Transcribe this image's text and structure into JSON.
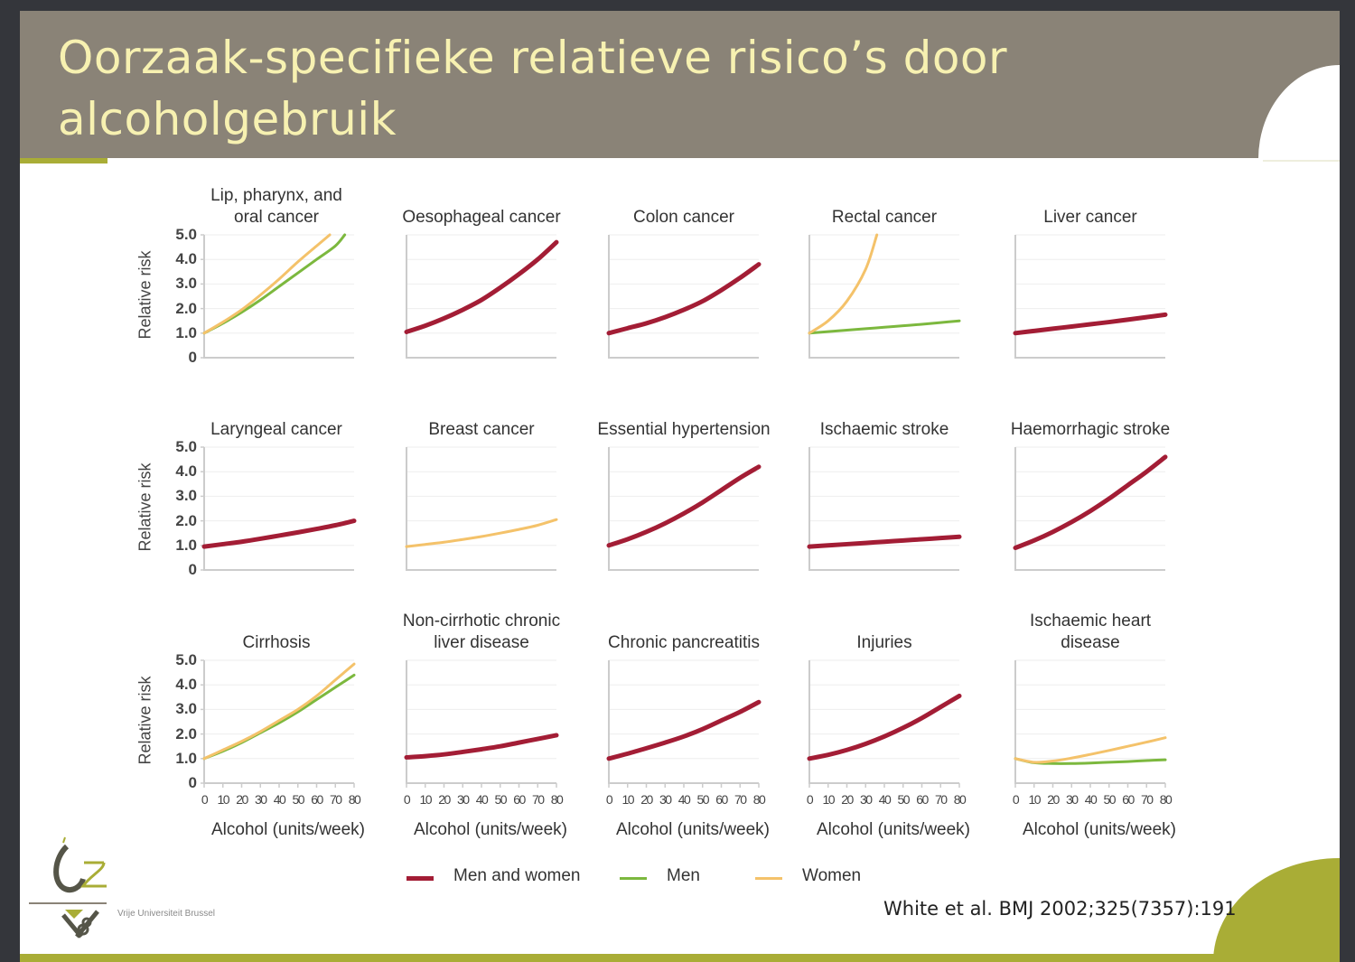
{
  "slide": {
    "title_line1": "Oorzaak-specifieke relatieve risico’s door",
    "title_line2": "alcoholgebruik",
    "citation": "White et al. BMJ 2002;325(7357):191",
    "logo_text": "Vrije Universiteit Brussel",
    "colors": {
      "header_bg": "#8a8377",
      "title_text": "#f7f1b1",
      "accent": "#a9ad36",
      "men_and_women": "#a31d35",
      "men": "#7cb83e",
      "women": "#f4c26a"
    }
  },
  "legend": [
    {
      "label": "Men and women",
      "series": "men_and_women"
    },
    {
      "label": "Men",
      "series": "men"
    },
    {
      "label": "Women",
      "series": "women"
    }
  ],
  "axes": {
    "ylabel": "Relative risk",
    "xlabel": "Alcohol (units/week)",
    "yticks": [
      "5.0",
      "4.0",
      "3.0",
      "2.0",
      "1.0",
      "0"
    ],
    "xticks": [
      "0",
      "10",
      "20",
      "30",
      "40",
      "50",
      "60",
      "70",
      "80"
    ],
    "ylim": [
      0,
      5
    ],
    "xlim": [
      0,
      80
    ]
  },
  "chart_data": {
    "type": "line",
    "title": "Oorzaak-specifieke relatieve risico’s door alcoholgebruik",
    "xlabel": "Alcohol (units/week)",
    "ylabel": "Relative risk",
    "x": [
      0,
      10,
      20,
      30,
      40,
      50,
      60,
      70,
      80
    ],
    "xlim": [
      0,
      80
    ],
    "ylim": [
      0,
      5
    ],
    "grid": true,
    "legend_position": "bottom",
    "panels": [
      {
        "title": "Lip, pharynx, and oral cancer",
        "series": [
          {
            "name": "Men",
            "values": [
              1.0,
              1.4,
              1.85,
              2.35,
              2.9,
              3.45,
              4.0,
              4.55,
              5.0
            ],
            "x": [
              0,
              10,
              20,
              30,
              40,
              50,
              60,
              70,
              75
            ]
          },
          {
            "name": "Women",
            "values": [
              1.0,
              1.45,
              1.95,
              2.55,
              3.2,
              3.9,
              4.55,
              5.0
            ],
            "x": [
              0,
              10,
              20,
              30,
              40,
              50,
              60,
              67
            ]
          }
        ]
      },
      {
        "title": "Oesophageal cancer",
        "series": [
          {
            "name": "Men and women",
            "values": [
              1.05,
              1.3,
              1.6,
              1.95,
              2.35,
              2.85,
              3.4,
              4.0,
              4.7
            ]
          }
        ]
      },
      {
        "title": "Colon cancer",
        "series": [
          {
            "name": "Men and women",
            "values": [
              1.0,
              1.2,
              1.4,
              1.65,
              1.95,
              2.3,
              2.75,
              3.25,
              3.8
            ]
          }
        ]
      },
      {
        "title": "Rectal cancer",
        "series": [
          {
            "name": "Men",
            "values": [
              1.0,
              1.06,
              1.12,
              1.18,
              1.24,
              1.3,
              1.36,
              1.43,
              1.5
            ]
          },
          {
            "name": "Women",
            "values": [
              1.0,
              1.5,
              2.3,
              3.6,
              5.0
            ],
            "x": [
              0,
              10,
              20,
              30,
              36
            ]
          }
        ]
      },
      {
        "title": "Liver cancer",
        "series": [
          {
            "name": "Men and women",
            "values": [
              1.0,
              1.09,
              1.18,
              1.27,
              1.36,
              1.45,
              1.55,
              1.65,
              1.75
            ]
          }
        ]
      },
      {
        "title": "Laryngeal cancer",
        "series": [
          {
            "name": "Men and women",
            "values": [
              0.95,
              1.05,
              1.15,
              1.27,
              1.4,
              1.53,
              1.67,
              1.82,
              2.0
            ]
          }
        ]
      },
      {
        "title": "Breast cancer",
        "series": [
          {
            "name": "Women",
            "values": [
              0.95,
              1.04,
              1.13,
              1.24,
              1.36,
              1.5,
              1.65,
              1.82,
              2.05
            ]
          }
        ]
      },
      {
        "title": "Essential hypertension",
        "series": [
          {
            "name": "Men and women",
            "values": [
              1.0,
              1.25,
              1.55,
              1.9,
              2.3,
              2.75,
              3.25,
              3.75,
              4.2
            ]
          }
        ]
      },
      {
        "title": "Ischaemic stroke",
        "series": [
          {
            "name": "Men and women",
            "values": [
              0.95,
              1.0,
              1.05,
              1.1,
              1.15,
              1.2,
              1.25,
              1.3,
              1.35
            ]
          }
        ]
      },
      {
        "title": "Haemorrhagic stroke",
        "series": [
          {
            "name": "Men and women",
            "values": [
              0.9,
              1.2,
              1.55,
              1.95,
              2.4,
              2.9,
              3.45,
              4.0,
              4.6
            ]
          }
        ]
      },
      {
        "title": "Cirrhosis",
        "series": [
          {
            "name": "Men",
            "values": [
              1.0,
              1.3,
              1.65,
              2.05,
              2.45,
              2.9,
              3.4,
              3.9,
              4.4
            ]
          },
          {
            "name": "Women",
            "values": [
              1.0,
              1.35,
              1.7,
              2.1,
              2.55,
              3.0,
              3.55,
              4.2,
              4.85
            ]
          }
        ]
      },
      {
        "title": "Non-cirrhotic chronic liver disease",
        "series": [
          {
            "name": "Men and women",
            "values": [
              1.05,
              1.1,
              1.17,
              1.27,
              1.38,
              1.5,
              1.65,
              1.8,
              1.95
            ]
          }
        ]
      },
      {
        "title": "Chronic pancreatitis",
        "series": [
          {
            "name": "Men and women",
            "values": [
              1.0,
              1.2,
              1.42,
              1.65,
              1.9,
              2.2,
              2.55,
              2.9,
              3.3
            ]
          }
        ]
      },
      {
        "title": "Injuries",
        "series": [
          {
            "name": "Men and women",
            "values": [
              1.0,
              1.15,
              1.35,
              1.6,
              1.9,
              2.25,
              2.65,
              3.1,
              3.55
            ]
          }
        ]
      },
      {
        "title": "Ischaemic heart disease",
        "series": [
          {
            "name": "Men",
            "values": [
              1.0,
              0.83,
              0.8,
              0.8,
              0.82,
              0.85,
              0.88,
              0.92,
              0.95
            ]
          },
          {
            "name": "Women",
            "values": [
              1.0,
              0.85,
              0.9,
              1.02,
              1.17,
              1.33,
              1.5,
              1.67,
              1.85
            ]
          }
        ]
      }
    ]
  },
  "panels": [
    {
      "title_l1": "Lip, pharynx, and",
      "title_l2": "oral cancer"
    },
    {
      "title_l1": "",
      "title_l2": "Oesophageal cancer"
    },
    {
      "title_l1": "",
      "title_l2": "Colon cancer"
    },
    {
      "title_l1": "",
      "title_l2": "Rectal cancer"
    },
    {
      "title_l1": "",
      "title_l2": "Liver cancer"
    },
    {
      "title_l1": "",
      "title_l2": "Laryngeal cancer"
    },
    {
      "title_l1": "",
      "title_l2": "Breast cancer"
    },
    {
      "title_l1": "",
      "title_l2": "Essential hypertension"
    },
    {
      "title_l1": "",
      "title_l2": "Ischaemic stroke"
    },
    {
      "title_l1": "",
      "title_l2": "Haemorrhagic stroke"
    },
    {
      "title_l1": "",
      "title_l2": "Cirrhosis"
    },
    {
      "title_l1": "Non-cirrhotic chronic",
      "title_l2": "liver disease"
    },
    {
      "title_l1": "",
      "title_l2": "Chronic pancreatitis"
    },
    {
      "title_l1": "",
      "title_l2": "Injuries"
    },
    {
      "title_l1": "Ischaemic heart",
      "title_l2": "disease"
    }
  ]
}
